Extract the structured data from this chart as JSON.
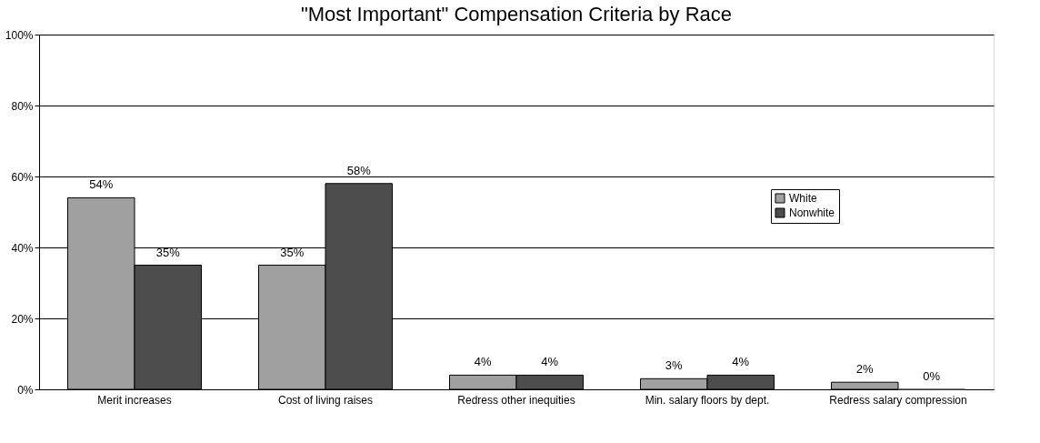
{
  "chart_data": {
    "type": "bar",
    "title": "\"Most Important\" Compensation Criteria by Race",
    "categories": [
      "Merit increases",
      "Cost of living raises",
      "Redress other inequities",
      "Min. salary floors by dept.",
      "Redress salary compression"
    ],
    "series": [
      {
        "name": "White",
        "color": "#a0a0a0",
        "values": [
          54,
          35,
          4,
          3,
          2
        ],
        "value_labels": [
          "54%",
          "35%",
          "4%",
          "3%",
          "2%"
        ]
      },
      {
        "name": "Nonwhite",
        "color": "#4d4d4d",
        "values": [
          35,
          58,
          4,
          4,
          0
        ],
        "value_labels": [
          "35%",
          "58%",
          "4%",
          "4%",
          "0%"
        ]
      }
    ],
    "ylim": [
      0,
      100
    ],
    "yticks": [
      {
        "value": 0,
        "label": "0%"
      },
      {
        "value": 20,
        "label": "20%"
      },
      {
        "value": 40,
        "label": "40%"
      },
      {
        "value": 60,
        "label": "60%"
      },
      {
        "value": 80,
        "label": "80%"
      },
      {
        "value": 100,
        "label": "100%"
      }
    ],
    "grid": "y",
    "legend": "top right"
  }
}
